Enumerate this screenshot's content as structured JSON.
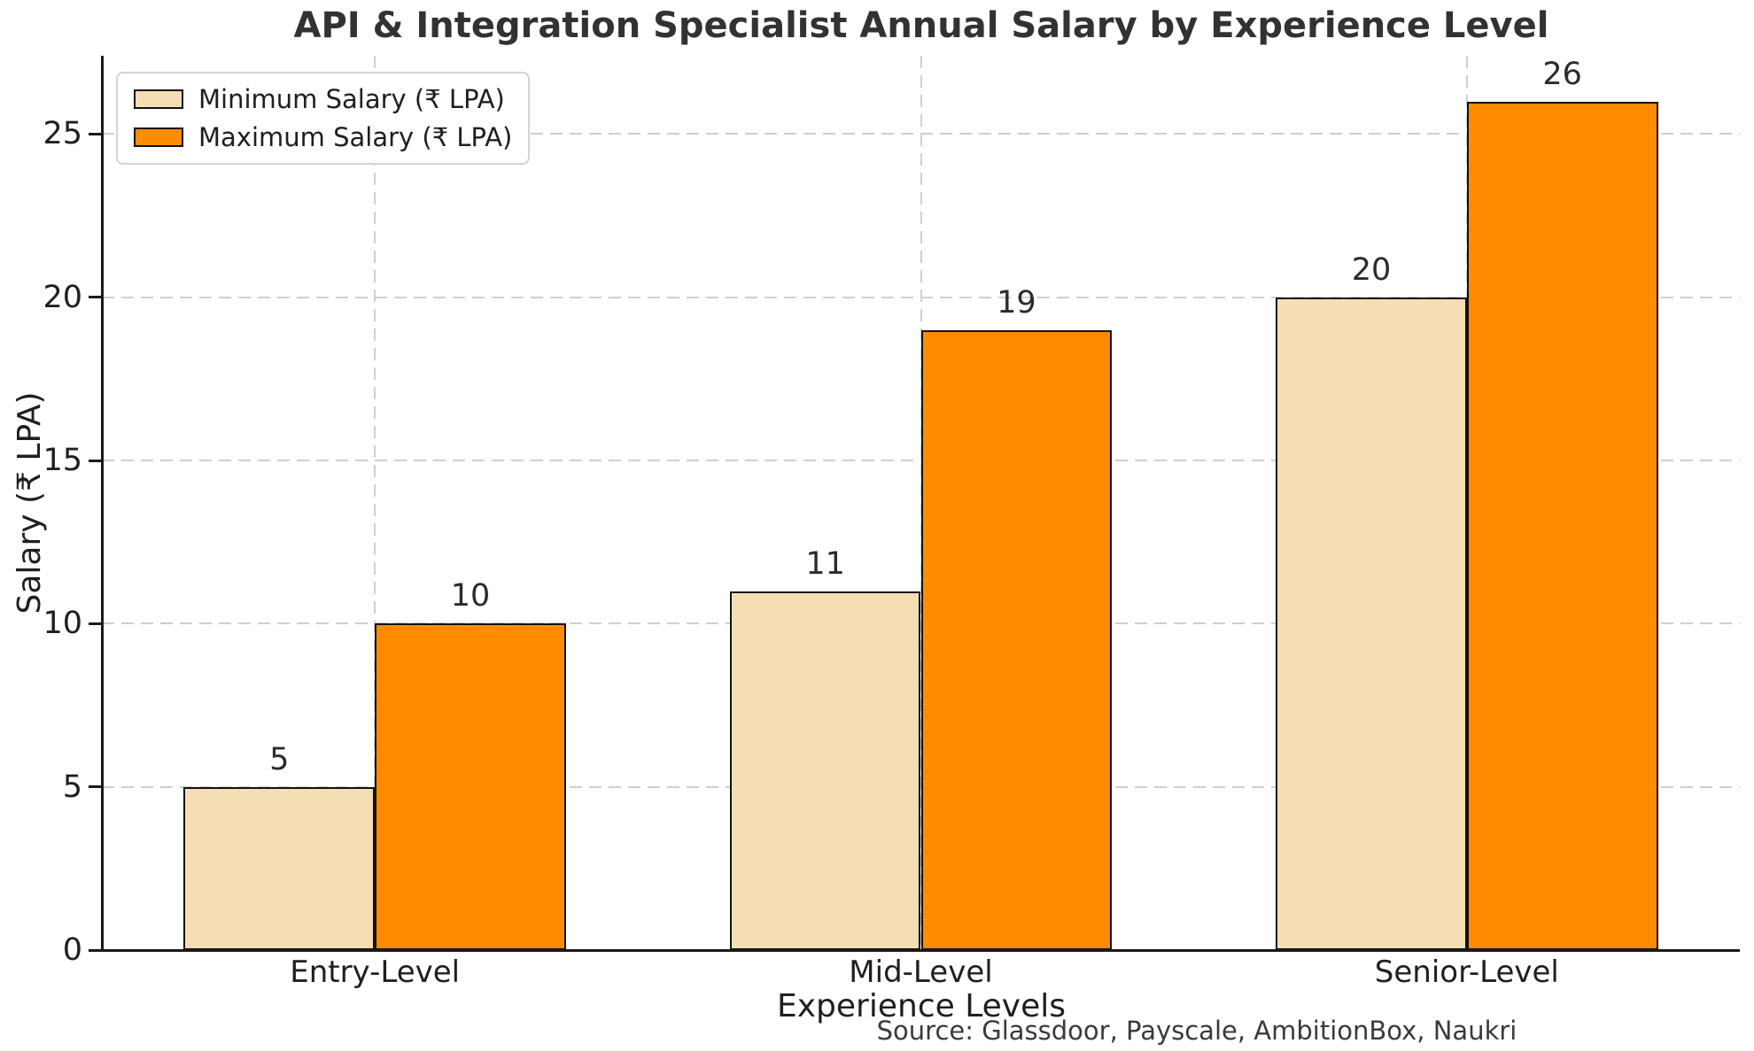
{
  "title": "API & Integration Specialist Annual Salary by Experience Level",
  "axes": {
    "x_label": "Experience Levels",
    "y_label": "Salary (₹ LPA)"
  },
  "legend": {
    "items": [
      {
        "label": "Minimum Salary (₹ LPA)",
        "color": "#F5DEB3"
      },
      {
        "label": "Maximum Salary (₹ LPA)",
        "color": "#FF8C00"
      }
    ]
  },
  "source_note": "Source: Glassdoor, Payscale, AmbitionBox, Naukri",
  "chart_data": {
    "type": "bar",
    "title": "API & Integration Specialist Annual Salary by Experience Level",
    "xlabel": "Experience Levels",
    "ylabel": "Salary (₹ LPA)",
    "categories": [
      "Entry-Level",
      "Mid-Level",
      "Senior-Level"
    ],
    "series": [
      {
        "name": "Minimum Salary (₹ LPA)",
        "color": "#F5DEB3",
        "values": [
          5,
          11,
          20
        ]
      },
      {
        "name": "Maximum Salary (₹ LPA)",
        "color": "#FF8C00",
        "values": [
          10,
          19,
          26
        ]
      }
    ],
    "value_labels": [
      [
        5,
        11,
        20
      ],
      [
        10,
        19,
        26
      ]
    ],
    "ylim": [
      0,
      27.4
    ],
    "yticks": [
      0,
      5,
      10,
      15,
      20,
      25
    ],
    "grid": true,
    "grid_style": "dashed",
    "legend_position": "upper left",
    "bar_edge_color": "#111111",
    "bar_width_fraction": 0.35,
    "source_note": "Source: Glassdoor, Payscale, AmbitionBox, Naukri"
  }
}
